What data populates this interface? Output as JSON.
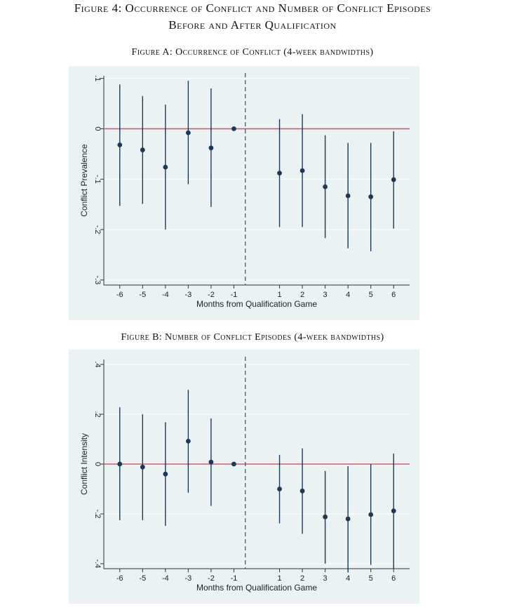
{
  "figure": {
    "title_line1": "Figure 4: Occurrence of Conflict and Number of Conflict Episodes",
    "title_line2": "Before and After Qualification"
  },
  "chart_data": [
    {
      "type": "scatter",
      "title": "Figure A: Occurrence of Conflict (4-week bandwidths)",
      "xlabel": "Months from Qualification Game",
      "ylabel": "Conflict Prevalence",
      "x": [
        -6,
        -5,
        -4,
        -3,
        -2,
        -1,
        1,
        2,
        3,
        4,
        5,
        6
      ],
      "x_tick_labels": [
        "-6",
        "-5",
        "-4",
        "-3",
        "-2",
        "-1",
        "1",
        "2",
        "3",
        "4",
        "5",
        "6"
      ],
      "y": [
        -0.032,
        -0.042,
        -0.076,
        -0.008,
        -0.038,
        0.0,
        -0.088,
        -0.083,
        -0.115,
        -0.133,
        -0.135,
        -0.101
      ],
      "ci_low": [
        -0.153,
        -0.149,
        -0.2,
        -0.11,
        -0.155,
        0.0,
        -0.195,
        -0.195,
        -0.217,
        -0.237,
        -0.243,
        -0.198
      ],
      "ci_high": [
        0.088,
        0.065,
        0.048,
        0.095,
        0.08,
        0.0,
        0.019,
        0.029,
        -0.013,
        -0.028,
        -0.028,
        -0.005
      ],
      "y_ticks": [
        0.1,
        0,
        -0.1,
        -0.2,
        -0.3
      ],
      "y_tick_labels": [
        ".1",
        "0",
        "-.1",
        "-.2",
        "-.3"
      ],
      "ylim": [
        -0.31,
        0.105
      ],
      "xlim": [
        -6.7,
        6.7
      ],
      "reference_line_y": 0,
      "cutoff_line_x": -0.5,
      "grid": true,
      "colors": {
        "background": "#eaf2f3",
        "point": "#1b3a57",
        "ci": "#1b3a57",
        "zero_line": "#d45c6e",
        "cutoff_line": "#555555",
        "grid": "#ffffff"
      }
    },
    {
      "type": "scatter",
      "title": "Figure B: Number of Conflict Episodes (4-week bandwidths)",
      "xlabel": "Months from Qualification Game",
      "ylabel": "Conflict Intensity",
      "x": [
        -6,
        -5,
        -4,
        -3,
        -2,
        -1,
        1,
        2,
        3,
        4,
        5,
        6
      ],
      "x_tick_labels": [
        "-6",
        "-5",
        "-4",
        "-3",
        "-2",
        "-1",
        "1",
        "2",
        "3",
        "4",
        "5",
        "6"
      ],
      "y": [
        0.0,
        -0.012,
        -0.04,
        0.092,
        0.008,
        0.0,
        -0.1,
        -0.108,
        -0.212,
        -0.22,
        -0.203,
        -0.188
      ],
      "ci_low": [
        -0.225,
        -0.225,
        -0.248,
        -0.115,
        -0.168,
        0.0,
        -0.238,
        -0.28,
        -0.4,
        -0.435,
        -0.405,
        -0.42
      ],
      "ci_high": [
        0.228,
        0.2,
        0.168,
        0.298,
        0.183,
        0.0,
        0.037,
        0.063,
        -0.028,
        -0.008,
        0.0,
        0.042
      ],
      "y_ticks": [
        0.4,
        0.2,
        0,
        -0.2,
        -0.4
      ],
      "y_tick_labels": [
        ".4",
        ".2",
        "0",
        "-.2",
        "-.4"
      ],
      "ylim": [
        -0.42,
        0.42
      ],
      "xlim": [
        -6.7,
        6.7
      ],
      "reference_line_y": 0,
      "cutoff_line_x": -0.5,
      "grid": true,
      "colors": {
        "background": "#eaf2f3",
        "point": "#1b3a57",
        "ci": "#1b3a57",
        "zero_line": "#d45c6e",
        "cutoff_line": "#555555",
        "grid": "#ffffff"
      }
    }
  ]
}
